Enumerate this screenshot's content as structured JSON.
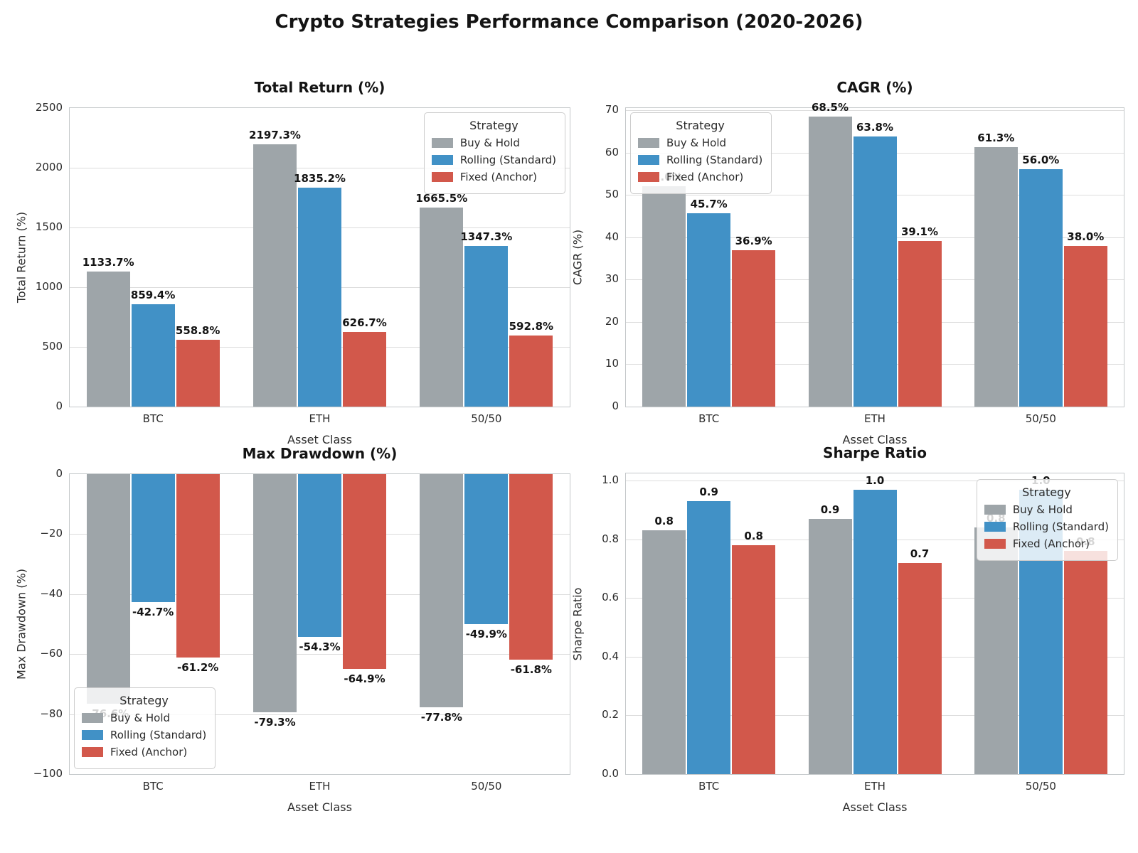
{
  "title": "Crypto Strategies Performance Comparison (2020-2026)",
  "legend_title": "Strategy",
  "legend_entries": [
    "Buy & Hold",
    "Rolling (Standard)",
    "Fixed (Anchor)"
  ],
  "colors": {
    "buy_and_hold": "#9EA5A9",
    "rolling_standard": "#4191C6",
    "fixed_anchor": "#D2584B",
    "grid": "#DCDCDC",
    "frame": "#C4C8CA"
  },
  "chart_data": [
    {
      "type": "bar",
      "title": "Total Return (%)",
      "xlabel": "Asset Class",
      "ylabel": "Total Return (%)",
      "categories": [
        "BTC",
        "ETH",
        "50/50"
      ],
      "series": [
        {
          "name": "Buy & Hold",
          "color": "#9EA5A9",
          "values": [
            1133.7,
            2197.3,
            1665.5
          ],
          "labels": [
            "1133.7%",
            "2197.3%",
            "1665.5%"
          ]
        },
        {
          "name": "Rolling (Standard)",
          "color": "#4191C6",
          "values": [
            859.4,
            1835.2,
            1347.3
          ],
          "labels": [
            "859.4%",
            "1835.2%",
            "1347.3%"
          ]
        },
        {
          "name": "Fixed (Anchor)",
          "color": "#D2584B",
          "values": [
            558.8,
            626.7,
            592.8
          ],
          "labels": [
            "558.8%",
            "626.7%",
            "592.8%"
          ]
        }
      ],
      "ylim": [
        0,
        2500
      ],
      "yticks": [
        {
          "v": 0,
          "label": "0"
        },
        {
          "v": 500,
          "label": "500"
        },
        {
          "v": 1000,
          "label": "1000"
        },
        {
          "v": 1500,
          "label": "1500"
        },
        {
          "v": 2000,
          "label": "2000"
        },
        {
          "v": 2500,
          "label": "2500"
        }
      ],
      "grid": true,
      "legend_pos": {
        "top": 6,
        "right": 6
      }
    },
    {
      "type": "bar",
      "title": "CAGR (%)",
      "xlabel": "Asset Class",
      "ylabel": "CAGR (%)",
      "categories": [
        "BTC",
        "ETH",
        "50/50"
      ],
      "series": [
        {
          "name": "Buy & Hold",
          "color": "#9EA5A9",
          "values": [
            52.0,
            68.5,
            61.3
          ],
          "labels": [
            "52.0%",
            "68.5%",
            "61.3%"
          ]
        },
        {
          "name": "Rolling (Standard)",
          "color": "#4191C6",
          "values": [
            45.7,
            63.8,
            56.0
          ],
          "labels": [
            "45.7%",
            "63.8%",
            "56.0%"
          ]
        },
        {
          "name": "Fixed (Anchor)",
          "color": "#D2584B",
          "values": [
            36.9,
            39.1,
            38.0
          ],
          "labels": [
            "36.9%",
            "39.1%",
            "38.0%"
          ]
        }
      ],
      "ylim": [
        0,
        70.5
      ],
      "yticks": [
        {
          "v": 0,
          "label": "0"
        },
        {
          "v": 10,
          "label": "10"
        },
        {
          "v": 20,
          "label": "20"
        },
        {
          "v": 30,
          "label": "30"
        },
        {
          "v": 40,
          "label": "40"
        },
        {
          "v": 50,
          "label": "50"
        },
        {
          "v": 60,
          "label": "60"
        },
        {
          "v": 70,
          "label": "70"
        }
      ],
      "grid": true,
      "legend_pos": {
        "top": 6,
        "left": 6
      }
    },
    {
      "type": "bar",
      "title": "Max Drawdown (%)",
      "xlabel": "Asset Class",
      "ylabel": "Max Drawdown (%)",
      "categories": [
        "BTC",
        "ETH",
        "50/50"
      ],
      "series": [
        {
          "name": "Buy & Hold",
          "color": "#9EA5A9",
          "values": [
            -76.6,
            -79.3,
            -77.8
          ],
          "labels": [
            "-76.6%",
            "-79.3%",
            "-77.8%"
          ]
        },
        {
          "name": "Rolling (Standard)",
          "color": "#4191C6",
          "values": [
            -42.7,
            -54.3,
            -49.9
          ],
          "labels": [
            "-42.7%",
            "-54.3%",
            "-49.9%"
          ]
        },
        {
          "name": "Fixed (Anchor)",
          "color": "#D2584B",
          "values": [
            -61.2,
            -64.9,
            -61.8
          ],
          "labels": [
            "-61.2%",
            "-64.9%",
            "-61.8%"
          ]
        }
      ],
      "ylim": [
        -100,
        0
      ],
      "yticks": [
        {
          "v": 0,
          "label": "0"
        },
        {
          "v": -20,
          "label": "−20"
        },
        {
          "v": -40,
          "label": "−40"
        },
        {
          "v": -60,
          "label": "−60"
        },
        {
          "v": -80,
          "label": "−80"
        },
        {
          "v": -100,
          "label": "−100"
        }
      ],
      "grid": true,
      "legend_pos": {
        "bottom": 7,
        "left": 6
      }
    },
    {
      "type": "bar",
      "title": "Sharpe Ratio",
      "xlabel": "Asset Class",
      "ylabel": "Sharpe Ratio",
      "categories": [
        "BTC",
        "ETH",
        "50/50"
      ],
      "series": [
        {
          "name": "Buy & Hold",
          "color": "#9EA5A9",
          "values": [
            0.83,
            0.87,
            0.84
          ],
          "labels": [
            "0.8",
            "0.9",
            "0.8"
          ]
        },
        {
          "name": "Rolling (Standard)",
          "color": "#4191C6",
          "values": [
            0.93,
            0.97,
            0.97
          ],
          "labels": [
            "0.9",
            "1.0",
            "1.0"
          ]
        },
        {
          "name": "Fixed (Anchor)",
          "color": "#D2584B",
          "values": [
            0.78,
            0.72,
            0.76
          ],
          "labels": [
            "0.8",
            "0.7",
            "0.8"
          ]
        }
      ],
      "ylim": [
        0,
        1.025
      ],
      "yticks": [
        {
          "v": 0,
          "label": "0.0"
        },
        {
          "v": 0.2,
          "label": "0.2"
        },
        {
          "v": 0.4,
          "label": "0.4"
        },
        {
          "v": 0.6,
          "label": "0.6"
        },
        {
          "v": 0.8,
          "label": "0.8"
        },
        {
          "v": 1.0,
          "label": "1.0"
        }
      ],
      "grid": true,
      "legend_pos": {
        "top": 8,
        "right": 8
      }
    }
  ]
}
